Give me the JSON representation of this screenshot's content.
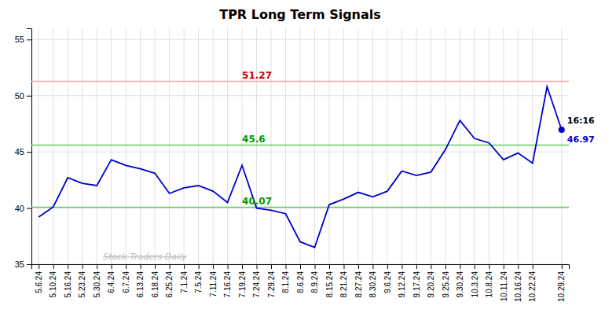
{
  "chart_data": {
    "type": "line",
    "title": "TPR Long Term Signals",
    "categories": [
      "5.6.24",
      "5.10.24",
      "5.16.24",
      "5.23.24",
      "5.30.24",
      "6.4.24",
      "6.7.24",
      "6.13.24",
      "6.18.24",
      "6.25.24",
      "7.1.24",
      "7.5.24",
      "7.11.24",
      "7.16.24",
      "7.19.24",
      "7.24.24",
      "7.29.24",
      "8.1.24",
      "8.6.24",
      "8.9.24",
      "8.15.24",
      "8.21.24",
      "8.27.24",
      "8.30.24",
      "9.6.24",
      "9.12.24",
      "9.17.24",
      "9.20.24",
      "9.25.24",
      "9.30.24",
      "10.3.24",
      "10.8.24",
      "10.11.24",
      "10.16.24",
      "10.22.24",
      null,
      "10.29.24"
    ],
    "values": [
      39.2,
      40.1,
      42.7,
      42.2,
      42.0,
      44.3,
      43.8,
      43.5,
      43.1,
      41.3,
      41.8,
      42.0,
      41.5,
      40.5,
      43.8,
      40.0,
      39.8,
      39.5,
      37.0,
      36.5,
      40.3,
      40.8,
      41.4,
      41.0,
      41.5,
      43.3,
      42.9,
      43.2,
      45.2,
      47.8,
      46.2,
      45.8,
      44.3,
      44.9,
      44.0,
      50.8,
      46.97
    ],
    "color": "#0000cc",
    "hlines": [
      {
        "value": 51.27,
        "label": "51.27",
        "color": "#ffaaaa",
        "label_color": "#cc0000"
      },
      {
        "value": 45.6,
        "label": "45.6",
        "color": "#66cc66",
        "label_color": "#009900"
      },
      {
        "value": 40.07,
        "label": "40.07",
        "color": "#66cc66",
        "label_color": "#009900"
      }
    ],
    "last_point_labels": [
      {
        "text": "16:16",
        "color": "#000000"
      },
      {
        "text": "46.97",
        "color": "#0000cc"
      }
    ],
    "watermark": {
      "text": "Stock Traders Daily",
      "color": "#bbbbbb"
    },
    "ylim": [
      35,
      56
    ],
    "yticks": [
      35,
      40,
      45,
      50,
      55
    ],
    "grid": true
  }
}
